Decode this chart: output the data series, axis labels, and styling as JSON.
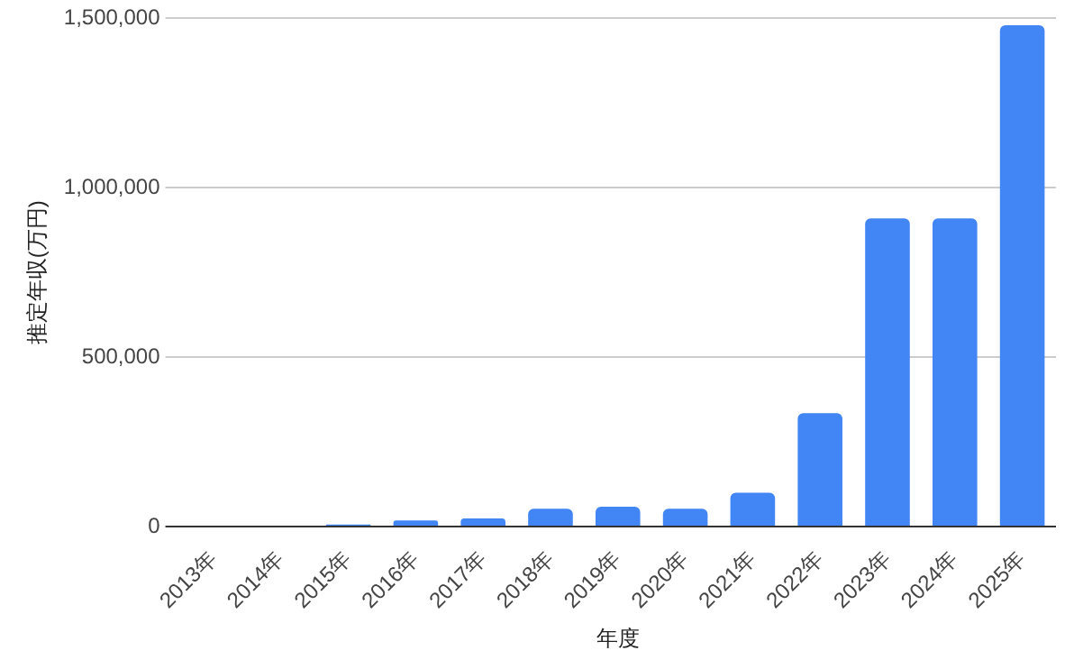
{
  "chart_data": {
    "type": "bar",
    "xlabel": "年度",
    "ylabel": "推定年収(万円)",
    "categories": [
      "2013年",
      "2014年",
      "2015年",
      "2016年",
      "2017年",
      "2018年",
      "2019年",
      "2020年",
      "2021年",
      "2022年",
      "2023年",
      "2024年",
      "2025年"
    ],
    "values": [
      0,
      0,
      6000,
      18000,
      24000,
      53000,
      59000,
      53000,
      100000,
      335000,
      910000,
      910000,
      1480000
    ],
    "color": "#4285f4",
    "ylim": [
      0,
      1500000
    ],
    "yticks": [
      {
        "value": 0,
        "label": "0"
      },
      {
        "value": 500000,
        "label": "500,000"
      },
      {
        "value": 1000000,
        "label": "1,000,000"
      },
      {
        "value": 1500000,
        "label": "1,500,000"
      }
    ],
    "grid": "y",
    "legend": false
  }
}
